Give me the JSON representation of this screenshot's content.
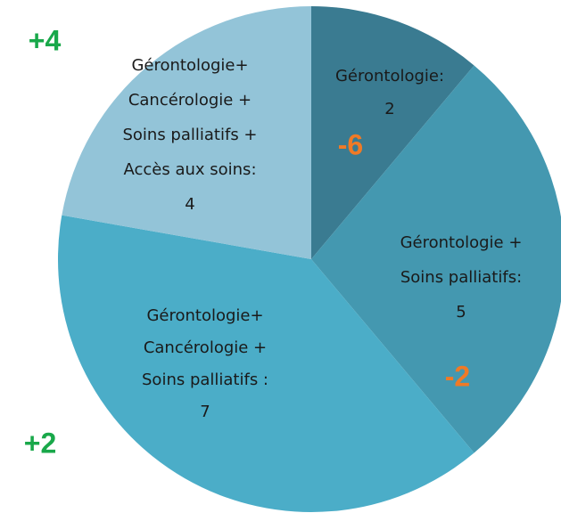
{
  "chart_data": {
    "type": "pie",
    "categories": [
      [
        "Gérontologie:"
      ],
      [
        "Gérontologie +",
        "Soins palliatifs:"
      ],
      [
        "Gérontologie+",
        "Cancérologie +",
        "Soins palliatifs  :"
      ],
      [
        "Gérontologie+",
        "Cancérologie +",
        "Soins palliatifs  +",
        "Accès aux soins:"
      ]
    ],
    "values": [
      2,
      5,
      7,
      4
    ],
    "colors": [
      "#3a7b91",
      "#4498b0",
      "#4badc8",
      "#93c4d8"
    ],
    "annotations": [
      {
        "text": "+4",
        "color": "#19a84a"
      },
      {
        "text": "-6",
        "color": "#f07a26"
      },
      {
        "text": "-2",
        "color": "#f07a26"
      },
      {
        "text": "+2",
        "color": "#19a84a"
      }
    ]
  }
}
